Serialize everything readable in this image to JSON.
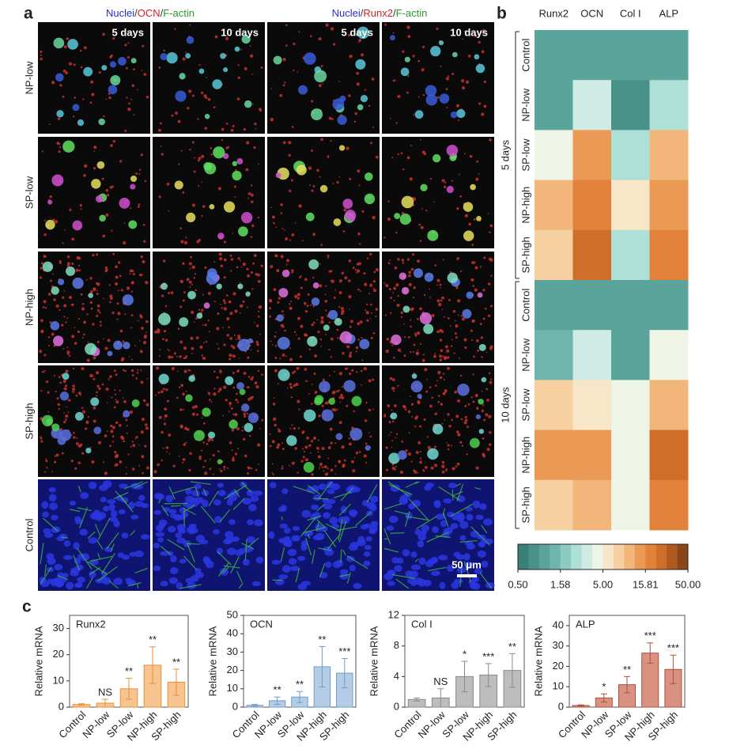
{
  "panel_labels": {
    "a": "a",
    "b": "b",
    "c": "c"
  },
  "panel_a": {
    "stain_headers": [
      [
        {
          "text": "Nuclei",
          "color": "#2a2ad0"
        },
        {
          "text": "/",
          "color": "#333333"
        },
        {
          "text": "OCN",
          "color": "#d02020"
        },
        {
          "text": "/",
          "color": "#333333"
        },
        {
          "text": "F-actin",
          "color": "#2a9a2a"
        }
      ],
      [
        {
          "text": "Nuclei",
          "color": "#2a2ad0"
        },
        {
          "text": "/",
          "color": "#333333"
        },
        {
          "text": "Runx2",
          "color": "#d02020"
        },
        {
          "text": "/",
          "color": "#333333"
        },
        {
          "text": "F-actin",
          "color": "#2a9a2a"
        }
      ]
    ],
    "column_labels": [
      "5 days",
      "10 days",
      "5 days",
      "10 days"
    ],
    "row_labels": [
      "NP-low",
      "SP-low",
      "NP-high",
      "SP-high",
      "Control"
    ],
    "scale_bar": "50 μm"
  },
  "chart_data": [
    {
      "type": "heatmap",
      "columns": [
        "Runx2",
        "OCN",
        "Col I",
        "ALP"
      ],
      "groups": [
        {
          "name": "5 days",
          "rows": [
            "Control",
            "NP-low",
            "SP-low",
            "NP-high",
            "SP-high"
          ],
          "values": [
            [
              1,
              1,
              1,
              1
            ],
            [
              0.9,
              3,
              0.8,
              2.5
            ],
            [
              4.5,
              14,
              2.2,
              10
            ],
            [
              9,
              16,
              5,
              15
            ],
            [
              7,
              22,
              2.2,
              20
            ]
          ]
        },
        {
          "name": "10 days",
          "rows": [
            "Control",
            "NP-low",
            "SP-low",
            "NP-high",
            "SP-high"
          ],
          "values": [
            [
              1,
              1,
              1,
              1
            ],
            [
              1.3,
              3.5,
              1.1,
              4.5
            ],
            [
              7,
              5.5,
              4.6,
              10
            ],
            [
              15,
              15,
              4.6,
              25
            ],
            [
              8,
              9,
              4.6,
              16
            ]
          ]
        }
      ],
      "colorbar": {
        "scale": "log",
        "lim": [
          0.5,
          50
        ],
        "ticks": [
          {
            "value": 0.5,
            "label": "0.50"
          },
          {
            "value": 1.58,
            "label": "1.58"
          },
          {
            "value": 5,
            "label": "5.00"
          },
          {
            "value": 15.81,
            "label": "15.81"
          },
          {
            "value": 50,
            "label": "50.00"
          }
        ],
        "colors": [
          "#3a7f78",
          "#4a918a",
          "#5aa49c",
          "#6fb5ad",
          "#8ccbc2",
          "#ade0d6",
          "#cfece4",
          "#eef4e6",
          "#f8e6c8",
          "#f6d0a0",
          "#f2b57a",
          "#eb9a55",
          "#e2823a",
          "#cf6e2a",
          "#b05a22",
          "#8a4518"
        ]
      }
    },
    {
      "type": "bar",
      "title": "Runx2",
      "y_label": "Relative mRNA",
      "categories": [
        "Control",
        "NP-low",
        "SP-low",
        "NP-high",
        "SP-high"
      ],
      "values": [
        1,
        1.5,
        7,
        16,
        9.5
      ],
      "errors": [
        0.3,
        1.5,
        4,
        7,
        5
      ],
      "significance": [
        null,
        "NS",
        "**",
        "**",
        "**"
      ],
      "color": "#f6c48e",
      "edge_color": "#e8903a",
      "ylim": [
        0,
        35
      ],
      "yticks": [
        0,
        10,
        20,
        30
      ]
    },
    {
      "type": "bar",
      "title": "OCN",
      "y_label": "Relative mRNA",
      "categories": [
        "Control",
        "NP-low",
        "SP-low",
        "NP-high",
        "SP-high"
      ],
      "values": [
        1,
        3.5,
        5.5,
        22,
        18.5
      ],
      "errors": [
        0.5,
        2,
        3,
        11,
        8
      ],
      "significance": [
        null,
        "**",
        "**",
        "**",
        "***"
      ],
      "color": "#b4cce6",
      "edge_color": "#6f9cc8",
      "ylim": [
        0,
        50
      ],
      "yticks": [
        0,
        10,
        20,
        30,
        40,
        50
      ]
    },
    {
      "type": "bar",
      "title": "Col I",
      "y_label": "Relative mRNA",
      "categories": [
        "Control",
        "NP-low",
        "SP-low",
        "NP-high",
        "SP-high"
      ],
      "values": [
        1,
        1.2,
        4,
        4.2,
        4.8
      ],
      "errors": [
        0.2,
        1.2,
        2,
        1.5,
        2.2
      ],
      "significance": [
        null,
        "NS",
        "*",
        "***",
        "**"
      ],
      "color": "#bdbdbd",
      "edge_color": "#8a8a8a",
      "ylim": [
        0,
        12
      ],
      "yticks": [
        0,
        4,
        8,
        12
      ]
    },
    {
      "type": "bar",
      "title": "ALP",
      "y_label": "Relative mRNA",
      "categories": [
        "Control",
        "NP-low",
        "SP-low",
        "NP-high",
        "SP-high"
      ],
      "values": [
        0.8,
        4.5,
        11,
        26.5,
        18.5
      ],
      "errors": [
        0.3,
        2,
        4,
        5,
        7
      ],
      "significance": [
        null,
        "*",
        "**",
        "***",
        "***"
      ],
      "color": "#d99282",
      "edge_color": "#b0503c",
      "ylim": [
        0,
        45
      ],
      "yticks": [
        0,
        10,
        20,
        30,
        40
      ]
    }
  ]
}
